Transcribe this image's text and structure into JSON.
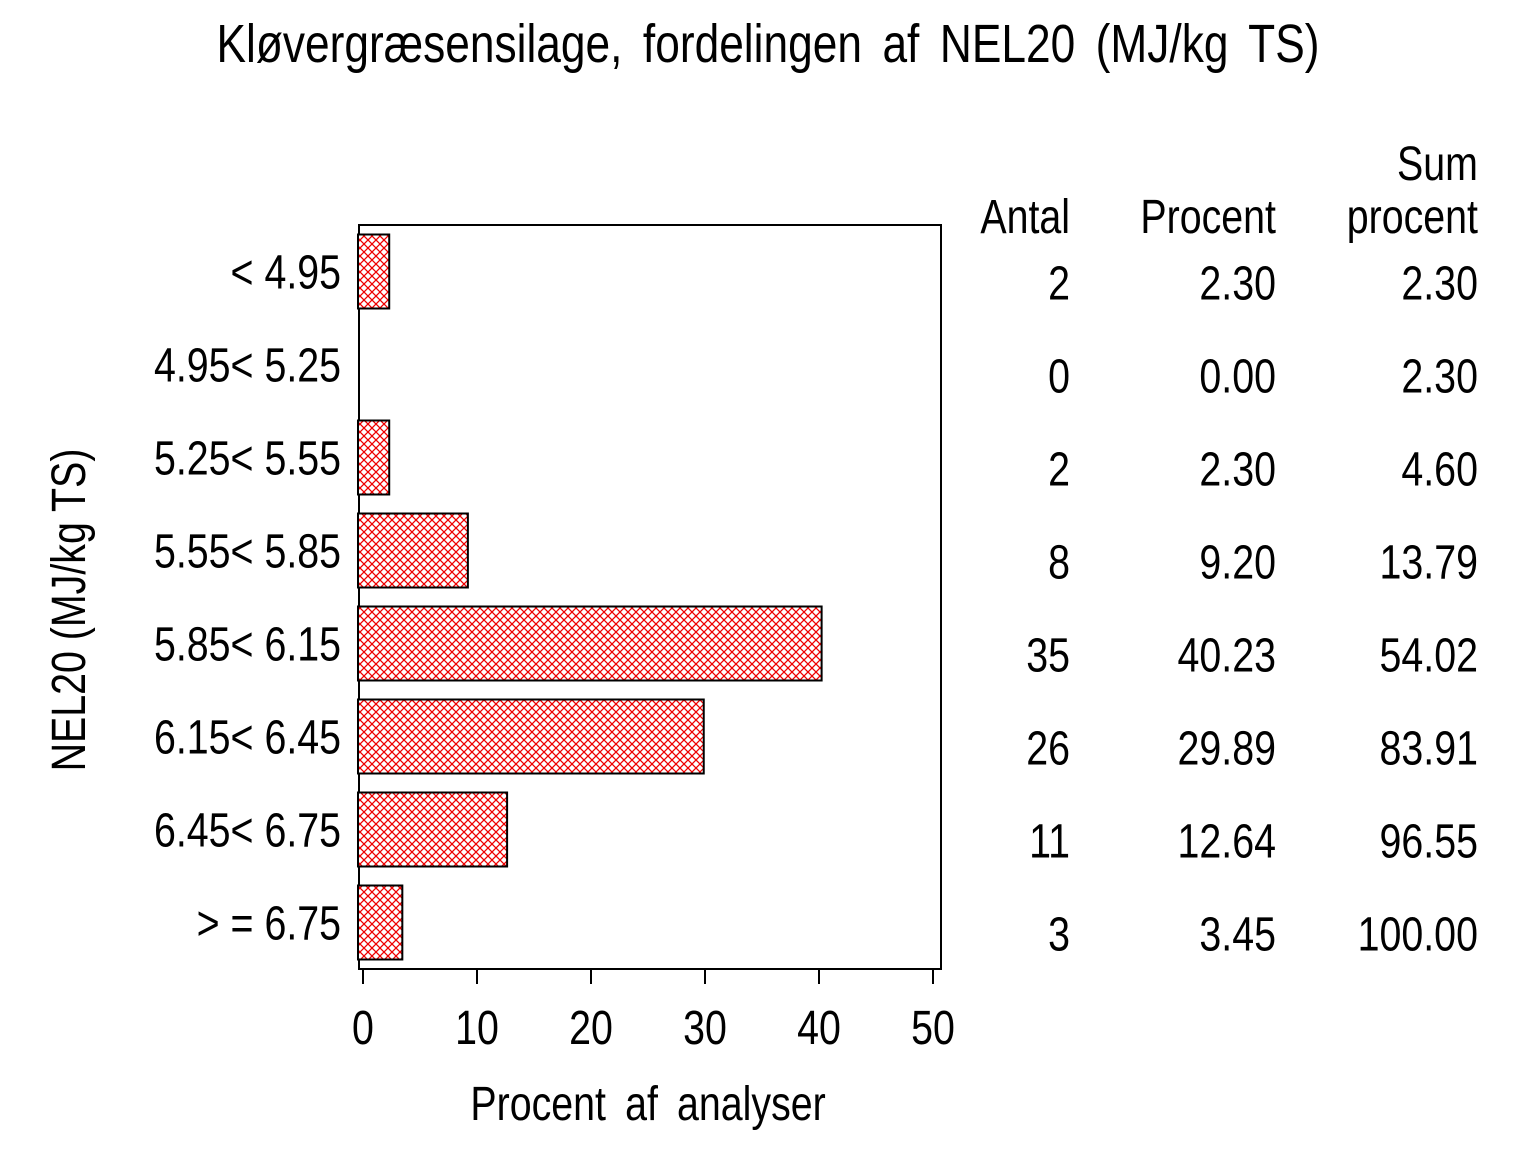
{
  "title": "Kløvergræsensilage, fordelingen af NEL20 (MJ/kg TS)",
  "chart_data": {
    "type": "bar",
    "orientation": "horizontal",
    "title": "Kløvergræsensilage, fordelingen af NEL20 (MJ/kg TS)",
    "xlabel": "Procent af analyser",
    "ylabel": "NEL20 (MJ/kg TS)",
    "categories": [
      "< 4.95",
      "4.95< 5.25",
      "5.25< 5.55",
      "5.55< 5.85",
      "5.85< 6.15",
      "6.15< 6.45",
      "6.45< 6.75",
      "> = 6.75"
    ],
    "values": [
      2.3,
      0.0,
      2.3,
      9.2,
      40.23,
      29.89,
      12.64,
      3.45
    ],
    "xlim": [
      0,
      50
    ],
    "xticks": [
      0,
      10,
      20,
      30,
      40,
      50
    ],
    "grid": false,
    "legend": "none",
    "bar_fill_pattern": "red-crosshatch",
    "bar_color": "#ee0000",
    "bar_border_color": "#000000",
    "frame_color": "#000000"
  },
  "table": {
    "col1_header": "Antal",
    "col2_header": "Procent",
    "col3_header_line1": "Sum",
    "col3_header_line2": "procent",
    "rows": [
      {
        "antal": "2",
        "procent": "2.30",
        "sum": "2.30"
      },
      {
        "antal": "0",
        "procent": "0.00",
        "sum": "2.30"
      },
      {
        "antal": "2",
        "procent": "2.30",
        "sum": "4.60"
      },
      {
        "antal": "8",
        "procent": "9.20",
        "sum": "13.79"
      },
      {
        "antal": "35",
        "procent": "40.23",
        "sum": "54.02"
      },
      {
        "antal": "26",
        "procent": "29.89",
        "sum": "83.91"
      },
      {
        "antal": "11",
        "procent": "12.64",
        "sum": "96.55"
      },
      {
        "antal": "3",
        "procent": "3.45",
        "sum": "100.00"
      }
    ]
  }
}
